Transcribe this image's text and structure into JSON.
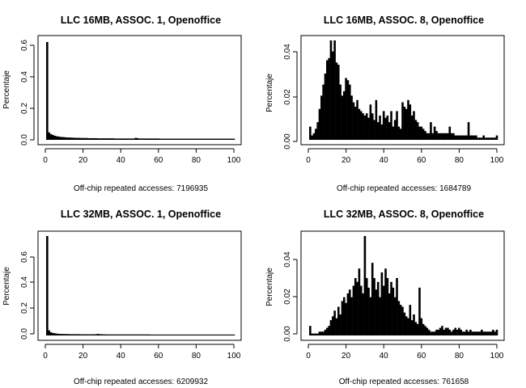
{
  "chart_data": [
    {
      "type": "bar",
      "title": "LLC 16MB, ASSOC. 1, Openoffice",
      "xlabel": "Off-chip repeated accesses: 7196935",
      "ylabel": "Percentaje",
      "xlim": [
        0,
        100
      ],
      "ylim": [
        0,
        0.6
      ],
      "xticks": [
        "0",
        "20",
        "40",
        "60",
        "80",
        "100"
      ],
      "yticks": [
        "0.0",
        "0.2",
        "0.4",
        "0.6"
      ],
      "grid": false,
      "x": [
        1,
        2,
        3,
        4,
        5,
        6,
        7,
        8,
        9,
        10,
        11,
        12,
        13,
        14,
        15,
        16,
        17,
        18,
        19,
        20,
        21,
        22,
        23,
        24,
        25,
        26,
        27,
        28,
        29,
        30,
        31,
        32,
        33,
        34,
        35,
        36,
        37,
        38,
        39,
        40,
        41,
        42,
        43,
        44,
        45,
        46,
        47,
        48,
        49,
        50,
        51,
        52,
        53,
        54,
        55,
        56,
        57,
        58,
        59,
        60,
        61,
        62,
        63,
        64,
        65,
        66,
        67,
        68,
        69,
        70,
        71,
        72,
        73,
        74,
        75,
        76,
        77,
        78,
        79,
        80,
        81,
        82,
        83,
        84,
        85,
        86,
        87,
        88,
        89,
        90,
        91,
        92,
        93,
        94,
        95,
        96,
        97,
        98,
        99,
        100
      ],
      "values": [
        0.59,
        0.045,
        0.035,
        0.03,
        0.025,
        0.022,
        0.02,
        0.018,
        0.017,
        0.016,
        0.015,
        0.014,
        0.014,
        0.013,
        0.013,
        0.012,
        0.012,
        0.012,
        0.011,
        0.011,
        0.011,
        0.011,
        0.01,
        0.01,
        0.01,
        0.01,
        0.01,
        0.009,
        0.009,
        0.009,
        0.009,
        0.009,
        0.009,
        0.009,
        0.009,
        0.009,
        0.008,
        0.008,
        0.008,
        0.008,
        0.008,
        0.008,
        0.008,
        0.008,
        0.008,
        0.008,
        0.008,
        0.012,
        0.01,
        0.008,
        0.008,
        0.008,
        0.008,
        0.008,
        0.008,
        0.008,
        0.008,
        0.008,
        0.008,
        0.008,
        0.007,
        0.007,
        0.007,
        0.007,
        0.007,
        0.007,
        0.007,
        0.007,
        0.007,
        0.007,
        0.007,
        0.007,
        0.007,
        0.007,
        0.007,
        0.007,
        0.007,
        0.007,
        0.007,
        0.007,
        0.007,
        0.007,
        0.007,
        0.007,
        0.007,
        0.007,
        0.007,
        0.007,
        0.007,
        0.007,
        0.007,
        0.007,
        0.007,
        0.007,
        0.007,
        0.007,
        0.007,
        0.007,
        0.007,
        0.007
      ]
    },
    {
      "type": "bar",
      "title": "LLC 16MB, ASSOC. 8, Openoffice",
      "xlabel": "Off-chip repeated accesses: 1684789",
      "ylabel": "Percentaje",
      "xlim": [
        0,
        100
      ],
      "ylim": [
        0,
        0.045
      ],
      "xticks": [
        "0",
        "20",
        "40",
        "60",
        "80",
        "100"
      ],
      "yticks": [
        "0.00",
        "0.02",
        "0.04"
      ],
      "grid": false,
      "x": [
        1,
        2,
        3,
        4,
        5,
        6,
        7,
        8,
        9,
        10,
        11,
        12,
        13,
        14,
        15,
        16,
        17,
        18,
        19,
        20,
        21,
        22,
        23,
        24,
        25,
        26,
        27,
        28,
        29,
        30,
        31,
        32,
        33,
        34,
        35,
        36,
        37,
        38,
        39,
        40,
        41,
        42,
        43,
        44,
        45,
        46,
        47,
        48,
        49,
        50,
        51,
        52,
        53,
        54,
        55,
        56,
        57,
        58,
        59,
        60,
        61,
        62,
        63,
        64,
        65,
        66,
        67,
        68,
        69,
        70,
        71,
        72,
        73,
        74,
        75,
        76,
        77,
        78,
        79,
        80,
        81,
        82,
        83,
        84,
        85,
        86,
        87,
        88,
        89,
        90,
        91,
        92,
        93,
        94,
        95,
        96,
        97,
        98,
        99,
        100
      ],
      "values": [
        0.006,
        0.002,
        0.003,
        0.005,
        0.008,
        0.014,
        0.02,
        0.025,
        0.03,
        0.036,
        0.037,
        0.045,
        0.04,
        0.045,
        0.035,
        0.034,
        0.025,
        0.02,
        0.022,
        0.028,
        0.027,
        0.025,
        0.02,
        0.017,
        0.015,
        0.018,
        0.014,
        0.013,
        0.012,
        0.011,
        0.012,
        0.01,
        0.016,
        0.012,
        0.009,
        0.018,
        0.008,
        0.011,
        0.007,
        0.013,
        0.01,
        0.011,
        0.008,
        0.013,
        0.006,
        0.009,
        0.013,
        0.006,
        0.005,
        0.017,
        0.015,
        0.014,
        0.018,
        0.016,
        0.011,
        0.013,
        0.009,
        0.008,
        0.006,
        0.006,
        0.005,
        0.004,
        0.003,
        0.003,
        0.008,
        0.003,
        0.006,
        0.004,
        0.003,
        0.003,
        0.003,
        0.003,
        0.003,
        0.003,
        0.006,
        0.003,
        0.003,
        0.002,
        0.002,
        0.002,
        0.002,
        0.002,
        0.002,
        0.002,
        0.008,
        0.002,
        0.002,
        0.002,
        0.002,
        0.001,
        0.001,
        0.001,
        0.002,
        0.001,
        0.001,
        0.001,
        0.001,
        0.001,
        0.001,
        0.002
      ]
    },
    {
      "type": "bar",
      "title": "LLC 32MB, ASSOC. 1, Openoffice",
      "xlabel": "Off-chip repeated accesses: 6209932",
      "ylabel": "Percentaje",
      "xlim": [
        0,
        100
      ],
      "ylim": [
        0,
        0.78
      ],
      "xticks": [
        "0",
        "20",
        "40",
        "60",
        "80",
        "100"
      ],
      "yticks": [
        "0.0",
        "0.2",
        "0.4",
        "0.6"
      ],
      "grid": false,
      "x": [
        1,
        2,
        3,
        4,
        5,
        6,
        7,
        8,
        9,
        10,
        11,
        12,
        13,
        14,
        15,
        16,
        17,
        18,
        19,
        20,
        21,
        22,
        23,
        24,
        25,
        26,
        27,
        28,
        29,
        30,
        31,
        32,
        33,
        34,
        35,
        36,
        37,
        38,
        39,
        40,
        41,
        42,
        43,
        44,
        45,
        46,
        47,
        48,
        49,
        50,
        51,
        52,
        53,
        54,
        55,
        56,
        57,
        58,
        59,
        60,
        61,
        62,
        63,
        64,
        65,
        66,
        67,
        68,
        69,
        70,
        71,
        72,
        73,
        74,
        75,
        76,
        77,
        78,
        79,
        80,
        81,
        82,
        83,
        84,
        85,
        86,
        87,
        88,
        89,
        90,
        91,
        92,
        93,
        94,
        95,
        96,
        97,
        98,
        99,
        100
      ],
      "values": [
        0.78,
        0.04,
        0.025,
        0.02,
        0.017,
        0.015,
        0.013,
        0.012,
        0.012,
        0.011,
        0.011,
        0.011,
        0.01,
        0.01,
        0.01,
        0.01,
        0.01,
        0.01,
        0.009,
        0.009,
        0.009,
        0.009,
        0.009,
        0.009,
        0.009,
        0.009,
        0.01,
        0.012,
        0.01,
        0.009,
        0.009,
        0.008,
        0.008,
        0.008,
        0.008,
        0.008,
        0.008,
        0.008,
        0.008,
        0.008,
        0.008,
        0.008,
        0.008,
        0.008,
        0.008,
        0.008,
        0.008,
        0.008,
        0.008,
        0.008,
        0.008,
        0.008,
        0.008,
        0.008,
        0.008,
        0.007,
        0.007,
        0.007,
        0.007,
        0.007,
        0.007,
        0.007,
        0.007,
        0.007,
        0.007,
        0.007,
        0.007,
        0.007,
        0.007,
        0.007,
        0.007,
        0.007,
        0.007,
        0.007,
        0.007,
        0.007,
        0.007,
        0.007,
        0.007,
        0.007,
        0.007,
        0.007,
        0.007,
        0.007,
        0.007,
        0.007,
        0.007,
        0.007,
        0.007,
        0.007,
        0.007,
        0.007,
        0.007,
        0.007,
        0.007,
        0.007,
        0.007,
        0.007,
        0.007,
        0.007
      ]
    },
    {
      "type": "bar",
      "title": "LLC 32MB, ASSOC. 8, Openoffice",
      "xlabel": "Off-chip repeated accesses: 761658",
      "ylabel": "Percentaje",
      "xlim": [
        0,
        100
      ],
      "ylim": [
        0,
        0.052
      ],
      "xticks": [
        "0",
        "20",
        "40",
        "60",
        "80",
        "100"
      ],
      "yticks": [
        "0.00",
        "0.02",
        "0.04"
      ],
      "grid": false,
      "x": [
        1,
        2,
        3,
        4,
        5,
        6,
        7,
        8,
        9,
        10,
        11,
        12,
        13,
        14,
        15,
        16,
        17,
        18,
        19,
        20,
        21,
        22,
        23,
        24,
        25,
        26,
        27,
        28,
        29,
        30,
        31,
        32,
        33,
        34,
        35,
        36,
        37,
        38,
        39,
        40,
        41,
        42,
        43,
        44,
        45,
        46,
        47,
        48,
        49,
        50,
        51,
        52,
        53,
        54,
        55,
        56,
        57,
        58,
        59,
        60,
        61,
        62,
        63,
        64,
        65,
        66,
        67,
        68,
        69,
        70,
        71,
        72,
        73,
        74,
        75,
        76,
        77,
        78,
        79,
        80,
        81,
        82,
        83,
        84,
        85,
        86,
        87,
        88,
        89,
        90,
        91,
        92,
        93,
        94,
        95,
        96,
        97,
        98,
        99,
        100
      ],
      "values": [
        0.005,
        0.001,
        0.001,
        0.001,
        0.001,
        0.002,
        0.002,
        0.002,
        0.003,
        0.004,
        0.005,
        0.008,
        0.01,
        0.013,
        0.009,
        0.015,
        0.011,
        0.018,
        0.02,
        0.017,
        0.022,
        0.024,
        0.02,
        0.026,
        0.03,
        0.028,
        0.035,
        0.026,
        0.022,
        0.052,
        0.03,
        0.025,
        0.02,
        0.038,
        0.03,
        0.024,
        0.028,
        0.02,
        0.033,
        0.026,
        0.035,
        0.03,
        0.022,
        0.028,
        0.025,
        0.02,
        0.03,
        0.018,
        0.016,
        0.015,
        0.012,
        0.01,
        0.009,
        0.016,
        0.008,
        0.011,
        0.007,
        0.006,
        0.025,
        0.009,
        0.006,
        0.005,
        0.004,
        0.003,
        0.002,
        0.002,
        0.002,
        0.003,
        0.003,
        0.004,
        0.005,
        0.003,
        0.004,
        0.004,
        0.003,
        0.002,
        0.003,
        0.004,
        0.003,
        0.004,
        0.003,
        0.002,
        0.002,
        0.003,
        0.002,
        0.003,
        0.002,
        0.002,
        0.002,
        0.002,
        0.002,
        0.003,
        0.002,
        0.002,
        0.002,
        0.002,
        0.002,
        0.003,
        0.002,
        0.003
      ]
    }
  ]
}
